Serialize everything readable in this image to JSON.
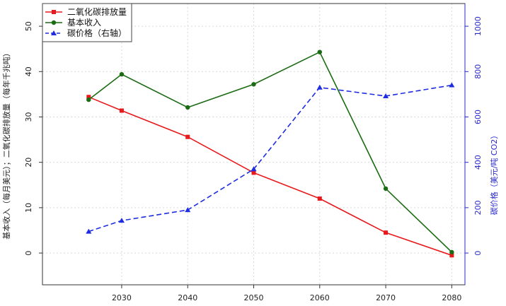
{
  "chart_data": {
    "type": "line",
    "x": [
      2025,
      2030,
      2040,
      2050,
      2060,
      2070,
      2080
    ],
    "x_ticks": [
      2030,
      2040,
      2050,
      2060,
      2070,
      2080
    ],
    "xlim": [
      2018,
      2082
    ],
    "y_left": {
      "label": "基本收入（每月美元）；二氧化碳排放量（每年千兆吨）",
      "lim": [
        -7,
        55
      ],
      "ticks": [
        0,
        10,
        20,
        30,
        40,
        50
      ]
    },
    "y_right": {
      "label": "碳价格（美元/吨 CO2）",
      "lim": [
        -140,
        1100
      ],
      "ticks": [
        0,
        200,
        400,
        600,
        800,
        1000
      ],
      "color": "#2b2bcc"
    },
    "grid": true,
    "legend_position": "top-left",
    "series": [
      {
        "name": "二氧化碳排放量",
        "axis": "left",
        "color": "#e8191c",
        "dash": "solid",
        "marker": "square",
        "values": [
          34.4,
          31.4,
          25.6,
          17.7,
          12.0,
          4.5,
          -0.5
        ]
      },
      {
        "name": "基本收入",
        "axis": "left",
        "color": "#1a6b12",
        "dash": "solid",
        "marker": "circle",
        "values": [
          33.8,
          39.4,
          32.1,
          37.2,
          44.3,
          14.2,
          0.2
        ]
      },
      {
        "name": "碳价格（右轴）",
        "axis": "right",
        "color": "#1f2de0",
        "dash": "dashed",
        "marker": "triangle",
        "values": [
          95,
          143,
          190,
          370,
          730,
          692,
          740
        ]
      }
    ]
  }
}
